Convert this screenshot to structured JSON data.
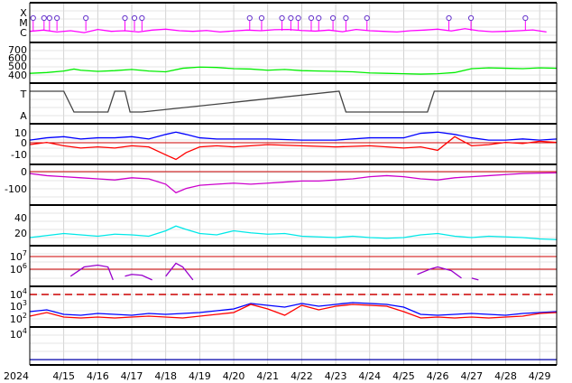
{
  "chart_data": {
    "type": "line",
    "x": {
      "start": "2024-04-14T00:00",
      "end": "2024-04-29T12:00",
      "unit": "day"
    },
    "x_ticks": [
      "2024",
      "4/15",
      "4/16",
      "4/17",
      "4/18",
      "4/19",
      "4/20",
      "4/21",
      "4/22",
      "4/23",
      "4/24",
      "4/25",
      "4/26",
      "4/27",
      "4/28",
      "4/29"
    ],
    "grid": true,
    "panels": [
      {
        "id": "flares",
        "ylabels": [
          "X",
          "M",
          "C"
        ],
        "series": [
          {
            "color": "#ff00ff",
            "x": [
              0,
              0.4,
              0.8,
              1.2,
              1.6,
              2,
              2.4,
              2.8,
              3.2,
              3.6,
              4,
              4.4,
              4.8,
              5.2,
              5.6,
              6,
              6.4,
              6.8,
              7.2,
              7.6,
              8,
              8.4,
              8.8,
              9.2,
              9.6,
              10,
              10.4,
              10.8,
              11.2,
              11.6,
              12,
              12.4,
              12.8,
              13.2,
              13.6,
              14,
              14.4,
              14.8,
              15.2
            ],
            "y": [
              0.45,
              0.55,
              0.4,
              0.5,
              0.35,
              0.6,
              0.45,
              0.5,
              0.4,
              0.55,
              0.62,
              0.5,
              0.45,
              0.52,
              0.4,
              0.48,
              0.55,
              0.5,
              0.58,
              0.6,
              0.52,
              0.47,
              0.55,
              0.42,
              0.6,
              0.5,
              0.45,
              0.4,
              0.5,
              0.55,
              0.62,
              0.48,
              0.66,
              0.5,
              0.42,
              0.45,
              0.5,
              0.56,
              0.4
            ]
          }
        ],
        "flare_markers_x": [
          0.1,
          0.42,
          0.58,
          0.8,
          1.65,
          2.8,
          3.08,
          3.3,
          6.47,
          6.82,
          7.42,
          7.68,
          7.9,
          8.28,
          8.5,
          8.92,
          9.3,
          9.92,
          12.33,
          12.98,
          14.58
        ]
      },
      {
        "id": "solar-wind-speed",
        "yticks": [
          400,
          500,
          600,
          700
        ],
        "ylim": [
          300,
          750
        ],
        "series": [
          {
            "color": "#00ee00",
            "x": [
              0,
              0.5,
              1,
              1.3,
              1.5,
              2,
              2.5,
              3,
              3.5,
              4,
              4.5,
              5,
              5.5,
              6,
              6.5,
              7,
              7.5,
              8,
              8.5,
              9,
              9.5,
              10,
              10.5,
              11,
              11.5,
              12,
              12.5,
              13,
              13.5,
              14,
              14.5,
              15,
              15.5
            ],
            "y": [
              390,
              400,
              420,
              445,
              430,
              415,
              425,
              440,
              420,
              410,
              455,
              470,
              465,
              450,
              445,
              430,
              440,
              425,
              420,
              415,
              410,
              395,
              390,
              385,
              380,
              385,
              400,
              450,
              460,
              455,
              450,
              460,
              455
            ]
          }
        ]
      },
      {
        "id": "imf-sector",
        "ylabels": [
          "T",
          "A"
        ],
        "series": [
          {
            "color": "#444444",
            "x": [
              0,
              1,
              1.3,
              2.3,
              2.5,
              2.8,
              2.95,
              3.3,
              9.1,
              9.3,
              11.7,
              11.9,
              15.5
            ],
            "y": [
              1,
              1,
              0,
              0,
              1,
              1,
              0,
              0,
              1,
              0,
              0,
              1,
              1
            ]
          }
        ]
      },
      {
        "id": "imf-field",
        "yticks": [
          -10,
          0,
          10
        ],
        "ylim": [
          -16,
          15
        ],
        "series": [
          {
            "color": "#0000ff",
            "x": [
              0,
              0.5,
              1,
              1.5,
              2,
              2.5,
              3,
              3.5,
              4,
              4.3,
              4.6,
              5,
              5.5,
              6,
              7,
              8,
              9,
              10,
              11,
              11.5,
              12,
              12.5,
              13,
              13.5,
              14,
              14.5,
              15,
              15.5
            ],
            "y": [
              3,
              5,
              6,
              4,
              5,
              5,
              6,
              4,
              8,
              10,
              8,
              5,
              4,
              4,
              4,
              3,
              3,
              5,
              5,
              9,
              10,
              8,
              5,
              3,
              3,
              4,
              3,
              4
            ]
          },
          {
            "color": "#ff0000",
            "x": [
              0,
              0.5,
              1,
              1.5,
              2,
              2.5,
              3,
              3.5,
              4,
              4.3,
              4.6,
              5,
              5.5,
              6,
              7,
              8,
              9,
              10,
              11,
              11.5,
              12,
              12.5,
              13,
              13.5,
              14,
              14.5,
              15,
              15.5
            ],
            "y": [
              -1,
              1,
              -2,
              -4,
              -3,
              -4,
              -2,
              -3,
              -10,
              -14,
              -8,
              -3,
              -2,
              -3,
              -1,
              -2,
              -3,
              -2,
              -4,
              -3,
              -6,
              6,
              -2,
              -1,
              1,
              0,
              2,
              1
            ]
          }
        ]
      },
      {
        "id": "dst",
        "yticks": [
          -100,
          0
        ],
        "ylim": [
          -140,
          25
        ],
        "series": [
          {
            "color": "#cc00cc",
            "x": [
              0,
              0.5,
              1,
              1.5,
              2,
              2.5,
              3,
              3.5,
              4,
              4.3,
              4.6,
              5,
              5.5,
              6,
              6.5,
              7,
              7.5,
              8,
              8.5,
              9,
              9.5,
              10,
              10.5,
              11,
              11.5,
              12,
              12.5,
              13,
              13.5,
              14,
              14.5,
              15,
              15.5
            ],
            "y": [
              -5,
              -15,
              -20,
              -25,
              -30,
              -35,
              -25,
              -30,
              -55,
              -95,
              -75,
              -60,
              -55,
              -50,
              -55,
              -50,
              -45,
              -40,
              -40,
              -35,
              -30,
              -20,
              -15,
              -20,
              -30,
              -35,
              -25,
              -20,
              -15,
              -10,
              -5,
              -3,
              -2
            ]
          }
        ]
      },
      {
        "id": "kp",
        "yticks": [
          20,
          40
        ],
        "ylim": [
          0,
          52
        ],
        "series": [
          {
            "color": "#00e8e8",
            "x": [
              0,
              0.5,
              1,
              1.5,
              2,
              2.5,
              3,
              3.5,
              4,
              4.3,
              4.6,
              5,
              5.5,
              6,
              6.5,
              7,
              7.5,
              8,
              8.5,
              9,
              9.5,
              10,
              10.5,
              11,
              11.5,
              12,
              12.5,
              13,
              13.5,
              14,
              14.5,
              15,
              15.5
            ],
            "y": [
              8,
              11,
              14,
              12,
              10,
              13,
              12,
              10,
              18,
              25,
              20,
              14,
              12,
              18,
              15,
              13,
              14,
              10,
              9,
              8,
              10,
              8,
              7,
              8,
              12,
              14,
              10,
              8,
              10,
              9,
              8,
              6,
              5
            ]
          }
        ]
      },
      {
        "id": "electron-flux",
        "yticks": [
          "10^6",
          "10^7"
        ],
        "ylim": [
          5.4,
          7.3
        ],
        "series": [
          {
            "color": "#9900cc",
            "segments": [
              {
                "x": [
                  1.2,
                  1.6,
                  2.0,
                  2.3,
                  2.45
                ],
                "y": [
                  5.8,
                  6.3,
                  6.4,
                  6.3,
                  5.6
                ]
              },
              {
                "x": [
                  2.8,
                  3.0,
                  3.3,
                  3.6
                ],
                "y": [
                  5.8,
                  5.9,
                  5.85,
                  5.6
                ]
              },
              {
                "x": [
                  4.0,
                  4.3,
                  4.5,
                  4.8
                ],
                "y": [
                  5.8,
                  6.5,
                  6.3,
                  5.6
                ]
              },
              {
                "x": [
                  11.4,
                  11.8,
                  12.0,
                  12.4,
                  12.7
                ],
                "y": [
                  5.9,
                  6.2,
                  6.3,
                  6.1,
                  5.7
                ]
              },
              {
                "x": [
                  13.0,
                  13.2
                ],
                "y": [
                  5.7,
                  5.6
                ]
              }
            ]
          }
        ]
      },
      {
        "id": "proton-flux",
        "yticks": [
          "10^2",
          "10^3",
          "10^4"
        ],
        "ylim": [
          0.7,
          4.6
        ],
        "threshold": 4,
        "series": [
          {
            "color": "#0000ff",
            "x": [
              0,
              0.5,
              1,
              1.5,
              2,
              2.5,
              3,
              3.5,
              4,
              4.5,
              5,
              5.5,
              6,
              6.5,
              7,
              7.5,
              8,
              8.5,
              9,
              9.5,
              10,
              10.5,
              11,
              11.5,
              12,
              12.5,
              13,
              13.5,
              14,
              14.5,
              15,
              15.5
            ],
            "y": [
              2.1,
              2.3,
              1.8,
              1.7,
              1.9,
              1.8,
              1.7,
              1.9,
              1.8,
              1.9,
              2.0,
              2.2,
              2.4,
              3.0,
              2.8,
              2.6,
              3.0,
              2.7,
              2.9,
              3.1,
              3.0,
              2.9,
              2.6,
              1.8,
              1.7,
              1.8,
              1.9,
              1.8,
              1.7,
              1.9,
              2.0,
              2.1
            ]
          },
          {
            "color": "#ff0000",
            "x": [
              0,
              0.5,
              1,
              1.5,
              2,
              2.5,
              3,
              3.5,
              4,
              4.5,
              5,
              5.5,
              6,
              6.5,
              7,
              7.5,
              8,
              8.5,
              9,
              9.5,
              10,
              10.5,
              11,
              11.5,
              12,
              12.5,
              13,
              13.5,
              14,
              14.5,
              15,
              15.5
            ],
            "y": [
              1.6,
              2.0,
              1.5,
              1.4,
              1.5,
              1.4,
              1.5,
              1.6,
              1.5,
              1.4,
              1.6,
              1.8,
              2.0,
              2.9,
              2.4,
              1.7,
              2.8,
              2.3,
              2.7,
              2.9,
              2.8,
              2.7,
              2.1,
              1.4,
              1.5,
              1.4,
              1.5,
              1.4,
              1.5,
              1.6,
              1.9,
              2.0
            ]
          }
        ]
      },
      {
        "id": "proton-high",
        "yticks": [
          "10^4"
        ],
        "ylim": [
          0,
          5
        ],
        "series": [
          {
            "color": "#0000aa",
            "x": [
              0,
              15.5
            ],
            "y": [
              0.4,
              0.4
            ]
          }
        ]
      }
    ]
  }
}
